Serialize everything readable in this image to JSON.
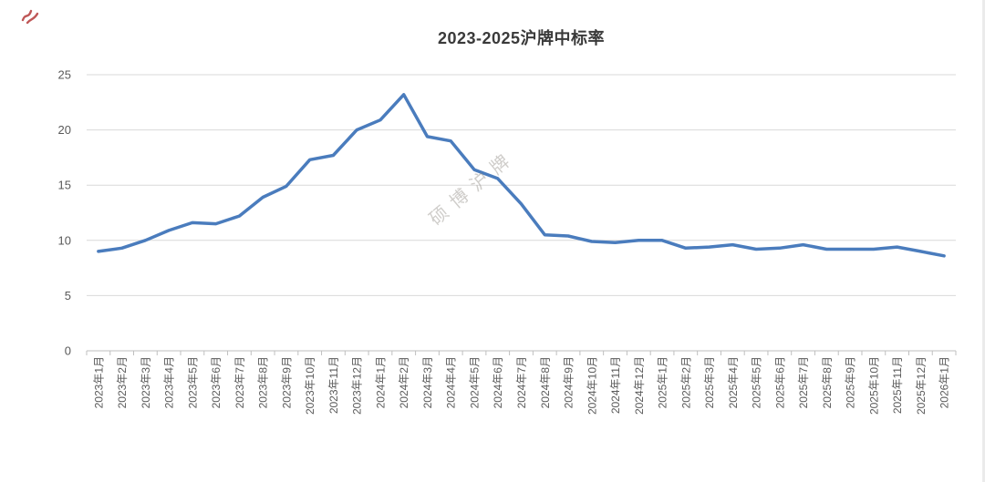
{
  "page": {
    "title": "2023-2025沪牌中标率",
    "watermark": "硕博沪牌"
  },
  "colors": {
    "line": "#4a7cbd",
    "gridline": "#d9d9d9",
    "axis": "#bfbfbf",
    "tick_label": "#595959",
    "title": "#3a3a3a",
    "watermark": "rgba(140,135,128,0.42)",
    "corner_mark": "#b43a3a"
  },
  "chart_data": {
    "type": "line",
    "title": "2023-2025沪牌中标率",
    "categories": [
      "2023年1月",
      "2023年2月",
      "2023年3月",
      "2023年4月",
      "2023年5月",
      "2023年6月",
      "2023年7月",
      "2023年8月",
      "2023年9月",
      "2023年10月",
      "2023年11月",
      "2023年12月",
      "2024年1月",
      "2024年2月",
      "2024年3月",
      "2024年4月",
      "2024年5月",
      "2024年6月",
      "2024年7月",
      "2024年8月",
      "2024年9月",
      "2024年10月",
      "2024年11月",
      "2024年12月",
      "2025年1月",
      "2025年2月",
      "2025年3月",
      "2025年4月",
      "2025年5月",
      "2025年6月",
      "2025年7月",
      "2025年8月",
      "2025年9月",
      "2025年10月",
      "2025年11月",
      "2025年12月",
      "2026年1月"
    ],
    "series": [
      {
        "name": "中标率",
        "values": [
          9.0,
          9.3,
          10.0,
          10.9,
          11.6,
          11.5,
          12.2,
          13.9,
          14.9,
          17.3,
          17.7,
          20.0,
          20.9,
          23.2,
          19.4,
          19.0,
          16.4,
          15.6,
          13.3,
          10.5,
          10.4,
          9.9,
          9.8,
          10.0,
          10.0,
          9.3,
          9.4,
          9.6,
          9.2,
          9.3,
          9.6,
          9.2,
          9.2,
          9.2,
          9.4,
          9.0,
          8.6
        ]
      }
    ],
    "xlabel": "",
    "ylabel": "",
    "ylim": [
      0,
      25
    ],
    "yticks": [
      0,
      5,
      10,
      15,
      20,
      25
    ],
    "grid": true,
    "legend": false,
    "x_label_rotation": -90,
    "markers": false
  }
}
